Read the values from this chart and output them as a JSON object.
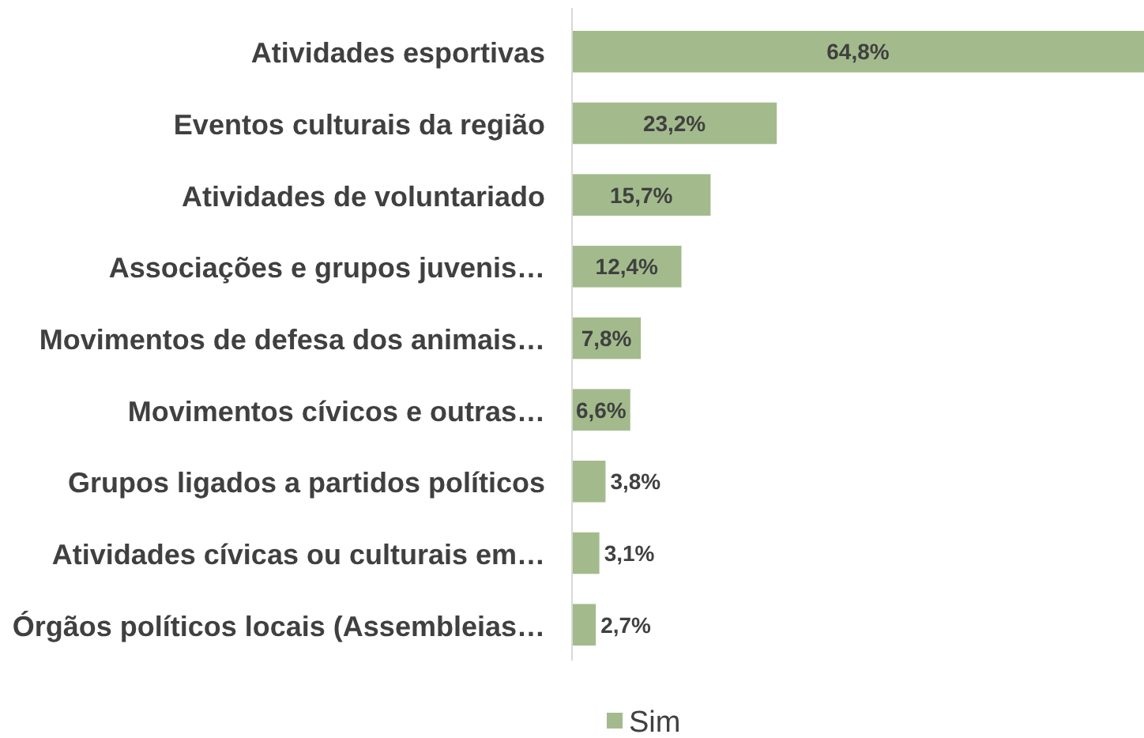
{
  "chart_data": {
    "type": "bar",
    "orientation": "horizontal",
    "categories": [
      "Atividades esportivas",
      "Eventos culturais da região",
      "Atividades de voluntariado",
      "Associações e grupos juvenis…",
      "Movimentos de defesa dos animais…",
      "Movimentos cívicos e outras…",
      "Grupos ligados a partidos políticos",
      "Atividades cívicas ou culturais em…",
      "Órgãos políticos locais (Assembleias…"
    ],
    "series": [
      {
        "name": "Sim",
        "color": "#a3bb8c",
        "values": [
          64.8,
          23.2,
          15.7,
          12.4,
          7.8,
          6.6,
          3.8,
          3.1,
          2.7
        ],
        "value_labels": [
          "64,8%",
          "23,2%",
          "15,7%",
          "12,4%",
          "7,8%",
          "6,6%",
          "3,8%",
          "3,1%",
          "2,7%"
        ]
      }
    ],
    "legend": "bottom"
  }
}
